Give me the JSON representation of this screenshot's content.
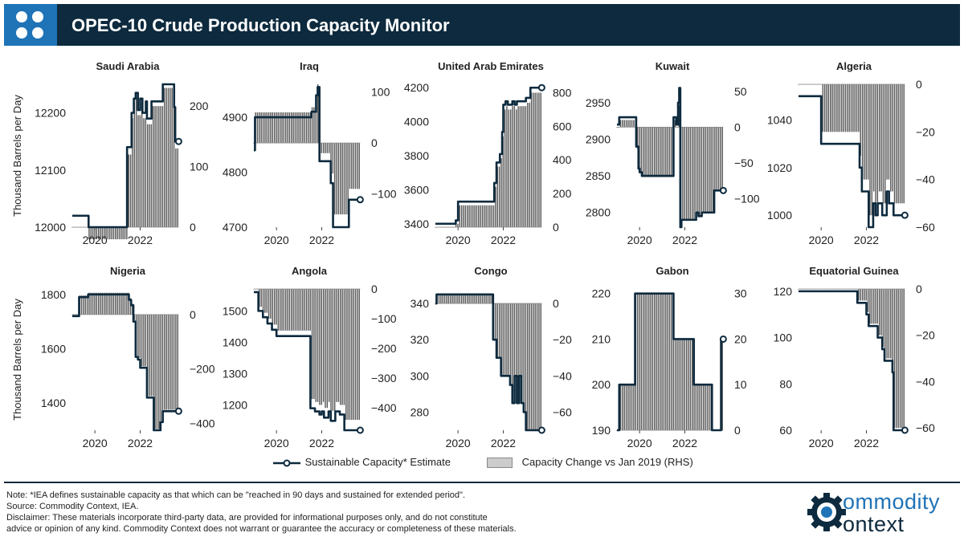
{
  "header": {
    "title": "OPEC-10 Crude Production Capacity Monitor"
  },
  "ylabel": "Thousand Barrels per Day",
  "legend": {
    "line_label": "Sustainable Capacity* Estimate",
    "bar_label": "Capacity Change vs Jan 2019 (RHS)"
  },
  "colors": {
    "header_bg": "#0d2a3e",
    "accent": "#1f73b7",
    "line": "#0d2a3e",
    "bars": "#555555"
  },
  "notes": [
    "Note: *IEA defines sustainable capacity as that which can be \"reached in 90 days and sustained for extended period\".",
    "Source: Commodity Context, IEA.",
    "Disclaimer: These materials incorporate third-party data, are provided for informational purposes only, and do not constitute",
    "advice or opinion of any kind. Commodity Context does not warrant or guarantee the accuracy or completeness of these materials."
  ],
  "brand": {
    "line1": "ommodity",
    "line2": "ontext"
  },
  "chart_data": [
    {
      "type": "line",
      "title": "Saudi Arabia",
      "ylim": [
        12000,
        12250
      ],
      "yticks": [
        12000,
        12100,
        12200
      ],
      "y2lim": [
        0,
        236
      ],
      "y2ticks": [
        0,
        100,
        200
      ],
      "xlim": [
        2019.0,
        2023.9
      ],
      "xticks": [
        2020,
        2022
      ],
      "x": [
        2019.0,
        2019.7,
        2019.72,
        2021.3,
        2021.42,
        2021.5,
        2021.62,
        2021.72,
        2021.8,
        2021.9,
        2022.0,
        2022.1,
        2022.25,
        2022.3,
        2022.5,
        2022.9,
        2023.0,
        2023.3,
        2023.5,
        2023.55,
        2023.7
      ],
      "values": [
        12020,
        12020,
        12000,
        12000,
        12140,
        12140,
        12200,
        12225,
        12235,
        12205,
        12225,
        12200,
        12220,
        12190,
        12220,
        12220,
        12250,
        12250,
        12210,
        12150,
        12150
      ]
    },
    {
      "type": "line",
      "title": "Iraq",
      "ylim": [
        4700,
        4960
      ],
      "yticks": [
        4700,
        4800,
        4900
      ],
      "y2lim": [
        -165,
        115
      ],
      "y2ticks": [
        -100,
        0,
        100
      ],
      "xlim": [
        2019.0,
        2023.9
      ],
      "xticks": [
        2020,
        2022
      ],
      "x": [
        2019.0,
        2019.05,
        2021.4,
        2021.55,
        2021.65,
        2021.75,
        2021.82,
        2021.9,
        2022.3,
        2022.4,
        2022.5,
        2023.0,
        2023.2,
        2023.25,
        2023.7
      ],
      "values": [
        4840,
        4900,
        4900,
        4910,
        4910,
        4940,
        4955,
        4820,
        4820,
        4780,
        4700,
        4700,
        4750,
        4750,
        4750
      ]
    },
    {
      "type": "line",
      "title": "United Arab Emirates",
      "ylim": [
        3380,
        4220
      ],
      "yticks": [
        3400,
        3600,
        3800,
        4000,
        4200
      ],
      "y2lim": [
        0,
        850
      ],
      "y2ticks": [
        0,
        200,
        400,
        600,
        800
      ],
      "xlim": [
        2019.0,
        2023.9
      ],
      "xticks": [
        2020,
        2022
      ],
      "x": [
        2019.0,
        2019.8,
        2019.9,
        2020.0,
        2021.5,
        2021.6,
        2021.7,
        2021.85,
        2021.95,
        2022.0,
        2022.1,
        2022.2,
        2022.4,
        2022.5,
        2022.6,
        2022.7,
        2023.0,
        2023.2,
        2023.4,
        2023.7
      ],
      "values": [
        3400,
        3400,
        3420,
        3530,
        3530,
        3640,
        3760,
        3810,
        3940,
        4100,
        4120,
        4100,
        4120,
        4100,
        4120,
        4120,
        4140,
        4200,
        4200,
        4200
      ]
    },
    {
      "type": "line",
      "title": "Kuwait",
      "ylim": [
        2780,
        2975
      ],
      "yticks": [
        2800,
        2850,
        2900,
        2950
      ],
      "y2lim": [
        -140,
        60
      ],
      "y2ticks": [
        -100,
        -50,
        0,
        50
      ],
      "xlim": [
        2019.0,
        2023.9
      ],
      "xticks": [
        2020,
        2022
      ],
      "x": [
        2019.0,
        2019.1,
        2019.8,
        2019.85,
        2019.95,
        2020.0,
        2020.1,
        2021.4,
        2021.5,
        2021.6,
        2021.62,
        2021.7,
        2021.75,
        2021.8,
        2021.85,
        2022.3,
        2022.5,
        2022.6,
        2022.75,
        2023.2,
        2023.3,
        2023.7
      ],
      "values": [
        2920,
        2930,
        2930,
        2890,
        2860,
        2855,
        2850,
        2850,
        2930,
        2930,
        2920,
        2950,
        2970,
        2780,
        2790,
        2790,
        2800,
        2795,
        2800,
        2800,
        2830,
        2830
      ]
    },
    {
      "type": "line",
      "title": "Algeria",
      "ylim": [
        995,
        1055
      ],
      "yticks": [
        1000,
        1020,
        1040
      ],
      "y2lim": [
        -60,
        0
      ],
      "y2ticks": [
        -60,
        -40,
        -20,
        0
      ],
      "xlim": [
        2019.0,
        2023.9
      ],
      "xticks": [
        2020,
        2022
      ],
      "x": [
        2019.0,
        2019.9,
        2020.0,
        2020.1,
        2021.0,
        2021.5,
        2021.7,
        2021.8,
        2022.0,
        2022.1,
        2022.2,
        2022.3,
        2022.4,
        2022.5,
        2022.7,
        2022.9,
        2023.0,
        2023.2,
        2023.4,
        2023.7
      ],
      "values": [
        1050,
        1050,
        1030,
        1030,
        1030,
        1030,
        1020,
        1010,
        1010,
        995,
        995,
        1005,
        1000,
        1005,
        1000,
        1010,
        1005,
        1000,
        1000,
        1000
      ]
    },
    {
      "type": "line",
      "title": "Nigeria",
      "ylim": [
        1300,
        1820
      ],
      "yticks": [
        1400,
        1600,
        1800
      ],
      "y2lim": [
        -425,
        94
      ],
      "y2ticks": [
        -400,
        -200,
        0
      ],
      "xlim": [
        2019.0,
        2023.9
      ],
      "xticks": [
        2020,
        2022
      ],
      "x": [
        2019.0,
        2019.2,
        2019.3,
        2019.6,
        2019.7,
        2021.4,
        2021.5,
        2021.6,
        2021.7,
        2021.8,
        2021.9,
        2022.0,
        2022.1,
        2022.3,
        2022.6,
        2022.8,
        2022.9,
        2023.0,
        2023.2,
        2023.7
      ],
      "values": [
        1720,
        1720,
        1790,
        1790,
        1800,
        1800,
        1780,
        1760,
        1700,
        1570,
        1560,
        1530,
        1530,
        1420,
        1300,
        1300,
        1330,
        1370,
        1370,
        1370
      ]
    },
    {
      "type": "line",
      "title": "Angola",
      "ylim": [
        1120,
        1570
      ],
      "yticks": [
        1200,
        1300,
        1400,
        1500
      ],
      "y2lim": [
        -475,
        0
      ],
      "y2ticks": [
        -400,
        -300,
        -200,
        -100,
        0
      ],
      "xlim": [
        2019.0,
        2023.9
      ],
      "xticks": [
        2020,
        2022
      ],
      "x": [
        2019.0,
        2019.2,
        2019.4,
        2019.6,
        2019.8,
        2020.0,
        2021.4,
        2021.5,
        2021.7,
        2021.9,
        2022.0,
        2022.1,
        2022.3,
        2022.4,
        2022.6,
        2022.8,
        2023.0,
        2023.2,
        2023.7
      ],
      "values": [
        1560,
        1500,
        1480,
        1460,
        1440,
        1420,
        1420,
        1190,
        1180,
        1170,
        1180,
        1160,
        1180,
        1150,
        1180,
        1170,
        1120,
        1120,
        1120
      ]
    },
    {
      "type": "line",
      "title": "Congo",
      "ylim": [
        270,
        348
      ],
      "yticks": [
        280,
        300,
        320,
        340
      ],
      "y2lim": [
        -70,
        8
      ],
      "y2ticks": [
        -60,
        -40,
        -20,
        0
      ],
      "xlim": [
        2019.0,
        2023.9
      ],
      "xticks": [
        2020,
        2022
      ],
      "x": [
        2019.0,
        2019.05,
        2021.4,
        2021.55,
        2021.7,
        2021.9,
        2022.1,
        2022.3,
        2022.4,
        2022.5,
        2022.6,
        2022.7,
        2022.8,
        2022.9,
        2023.0,
        2023.2,
        2023.5,
        2023.7
      ],
      "values": [
        340,
        345,
        345,
        320,
        310,
        300,
        300,
        295,
        285,
        300,
        285,
        300,
        285,
        280,
        270,
        270,
        270,
        270
      ]
    },
    {
      "type": "line",
      "title": "Gabon",
      "ylim": [
        190,
        221
      ],
      "yticks": [
        190,
        200,
        210,
        220
      ],
      "y2lim": [
        0,
        31
      ],
      "y2ticks": [
        0,
        10,
        20,
        30
      ],
      "xlim": [
        2019.0,
        2023.9
      ],
      "xticks": [
        2020,
        2022
      ],
      "x": [
        2019.0,
        2019.1,
        2019.7,
        2019.8,
        2021.4,
        2021.5,
        2022.3,
        2022.4,
        2023.0,
        2023.2,
        2023.5,
        2023.6,
        2023.7
      ],
      "values": [
        190,
        200,
        200,
        220,
        220,
        210,
        210,
        200,
        200,
        190,
        190,
        210,
        210
      ]
    },
    {
      "type": "line",
      "title": "Equatorial Guinea",
      "ylim": [
        60,
        121
      ],
      "yticks": [
        60,
        80,
        100,
        120
      ],
      "y2lim": [
        -61,
        0
      ],
      "y2ticks": [
        -60,
        -40,
        -20,
        0
      ],
      "xlim": [
        2019.0,
        2023.9
      ],
      "xticks": [
        2020,
        2022
      ],
      "x": [
        2019.0,
        2021.5,
        2021.6,
        2021.9,
        2022.0,
        2022.1,
        2022.2,
        2022.4,
        2022.5,
        2022.6,
        2022.7,
        2022.8,
        2022.95,
        2023.0,
        2023.15,
        2023.2,
        2023.4,
        2023.7
      ],
      "values": [
        120,
        120,
        115,
        115,
        110,
        105,
        105,
        105,
        100,
        100,
        95,
        90,
        90,
        90,
        85,
        60,
        60,
        60
      ]
    }
  ]
}
